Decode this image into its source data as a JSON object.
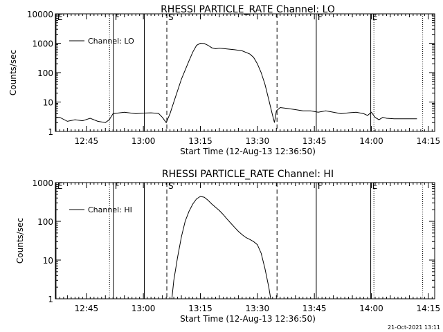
{
  "chart_data": [
    {
      "type": "line",
      "title": "RHESSI PARTICLE_RATE Channel: LO",
      "xlabel": "Start Time (12-Aug-13 12:36:50)",
      "ylabel": "Counts/sec",
      "yscale": "log",
      "ylim": [
        1,
        10000
      ],
      "xlim": [
        "12:36:50",
        "14:16:40"
      ],
      "x_ticks": [
        "12:45",
        "13:00",
        "13:15",
        "13:30",
        "13:45",
        "14:00",
        "14:15"
      ],
      "y_ticks": [
        "1",
        "10",
        "100",
        "1000",
        "10000"
      ],
      "legend": "Channel: LO",
      "legend_position": "top-left",
      "grid": false,
      "markers": [
        {
          "time": "12:37:00",
          "label": "E",
          "style": "solid"
        },
        {
          "time": "12:51:05",
          "label": "",
          "style": "dotted"
        },
        {
          "time": "12:52:05",
          "label": "F",
          "style": "solid"
        },
        {
          "time": "13:00:15",
          "label": "",
          "style": "solid"
        },
        {
          "time": "13:06:10",
          "label": "S",
          "style": "dashed"
        },
        {
          "time": "13:35:10",
          "label": "",
          "style": "dashed"
        },
        {
          "time": "13:45:30",
          "label": "F",
          "style": "solid"
        },
        {
          "time": "13:59:50",
          "label": "E",
          "style": "solid"
        },
        {
          "time": "14:00:40",
          "label": "",
          "style": "dotted"
        },
        {
          "time": "14:13:30",
          "label": "",
          "style": "dotted"
        }
      ],
      "series": [
        {
          "name": "Channel: LO",
          "x": [
            "12:36:50",
            "12:38",
            "12:40",
            "12:42",
            "12:44",
            "12:46",
            "12:48",
            "12:50",
            "12:51",
            "12:52",
            "12:55",
            "12:58",
            "13:00",
            "13:02",
            "13:04",
            "13:05",
            "13:06",
            "13:07",
            "13:08",
            "13:10",
            "13:12",
            "13:13",
            "13:14",
            "13:15",
            "13:16",
            "13:17",
            "13:18",
            "13:19",
            "13:20",
            "13:22",
            "13:24",
            "13:26",
            "13:28",
            "13:29",
            "13:30",
            "13:31",
            "13:32",
            "13:33",
            "13:34",
            "13:34:30",
            "13:35",
            "13:36",
            "13:38",
            "13:40",
            "13:42",
            "13:44",
            "13:46",
            "13:48",
            "13:50",
            "13:52",
            "13:54",
            "13:56",
            "13:58",
            "13:59",
            "14:00",
            "14:01",
            "14:02",
            "14:03",
            "14:04",
            "14:06",
            "14:08",
            "14:10",
            "14:12"
          ],
          "y": [
            3,
            3,
            2.2,
            2.5,
            2.3,
            2.8,
            2.2,
            2,
            2.5,
            4,
            4.5,
            4,
            4.2,
            4.3,
            4.1,
            3,
            2,
            4,
            10,
            60,
            250,
            500,
            850,
            1000,
            980,
            850,
            700,
            650,
            680,
            640,
            600,
            550,
            430,
            330,
            200,
            100,
            40,
            12,
            3.5,
            2,
            5,
            6.5,
            6,
            5.5,
            5,
            5,
            4.5,
            5,
            4.5,
            4,
            4.3,
            4.5,
            4,
            3.5,
            4.5,
            3,
            2.5,
            3,
            2.8,
            2.7,
            2.7,
            2.7,
            2.7
          ]
        }
      ]
    },
    {
      "type": "line",
      "title": "RHESSI PARTICLE_RATE Channel: HI",
      "xlabel": "Start Time (12-Aug-13 12:36:50)",
      "ylabel": "Counts/sec",
      "yscale": "log",
      "ylim": [
        1,
        1000
      ],
      "xlim": [
        "12:36:50",
        "14:16:40"
      ],
      "x_ticks": [
        "12:45",
        "13:00",
        "13:15",
        "13:30",
        "13:45",
        "14:00",
        "14:15"
      ],
      "y_ticks": [
        "1",
        "10",
        "100",
        "1000"
      ],
      "legend": "Channel: HI",
      "legend_position": "top-left",
      "grid": false,
      "markers": [
        {
          "time": "12:37:00",
          "label": "E",
          "style": "solid"
        },
        {
          "time": "12:51:05",
          "label": "",
          "style": "dotted"
        },
        {
          "time": "12:52:05",
          "label": "F",
          "style": "solid"
        },
        {
          "time": "13:00:15",
          "label": "",
          "style": "solid"
        },
        {
          "time": "13:06:10",
          "label": "S",
          "style": "dashed"
        },
        {
          "time": "13:35:10",
          "label": "",
          "style": "dashed"
        },
        {
          "time": "13:45:30",
          "label": "F",
          "style": "solid"
        },
        {
          "time": "13:59:50",
          "label": "E",
          "style": "solid"
        },
        {
          "time": "14:00:40",
          "label": "",
          "style": "dotted"
        },
        {
          "time": "14:13:30",
          "label": "",
          "style": "dotted"
        }
      ],
      "series": [
        {
          "name": "Channel: HI",
          "x": [
            "13:07:30",
            "13:08",
            "13:09",
            "13:10",
            "13:11",
            "13:12",
            "13:13",
            "13:14",
            "13:15",
            "13:16",
            "13:17",
            "13:18",
            "13:19",
            "13:20",
            "13:21",
            "13:22",
            "13:23",
            "13:24",
            "13:25",
            "13:26",
            "13:27",
            "13:28",
            "13:29",
            "13:30",
            "13:31",
            "13:32",
            "13:33",
            "13:33:30"
          ],
          "y": [
            1,
            3,
            12,
            40,
            100,
            180,
            280,
            380,
            440,
            420,
            350,
            280,
            230,
            190,
            150,
            115,
            90,
            70,
            55,
            45,
            38,
            34,
            30,
            25,
            15,
            6,
            2,
            1
          ]
        }
      ]
    }
  ],
  "footer": {
    "timestamp": "21-Oct-2021 13:11"
  }
}
